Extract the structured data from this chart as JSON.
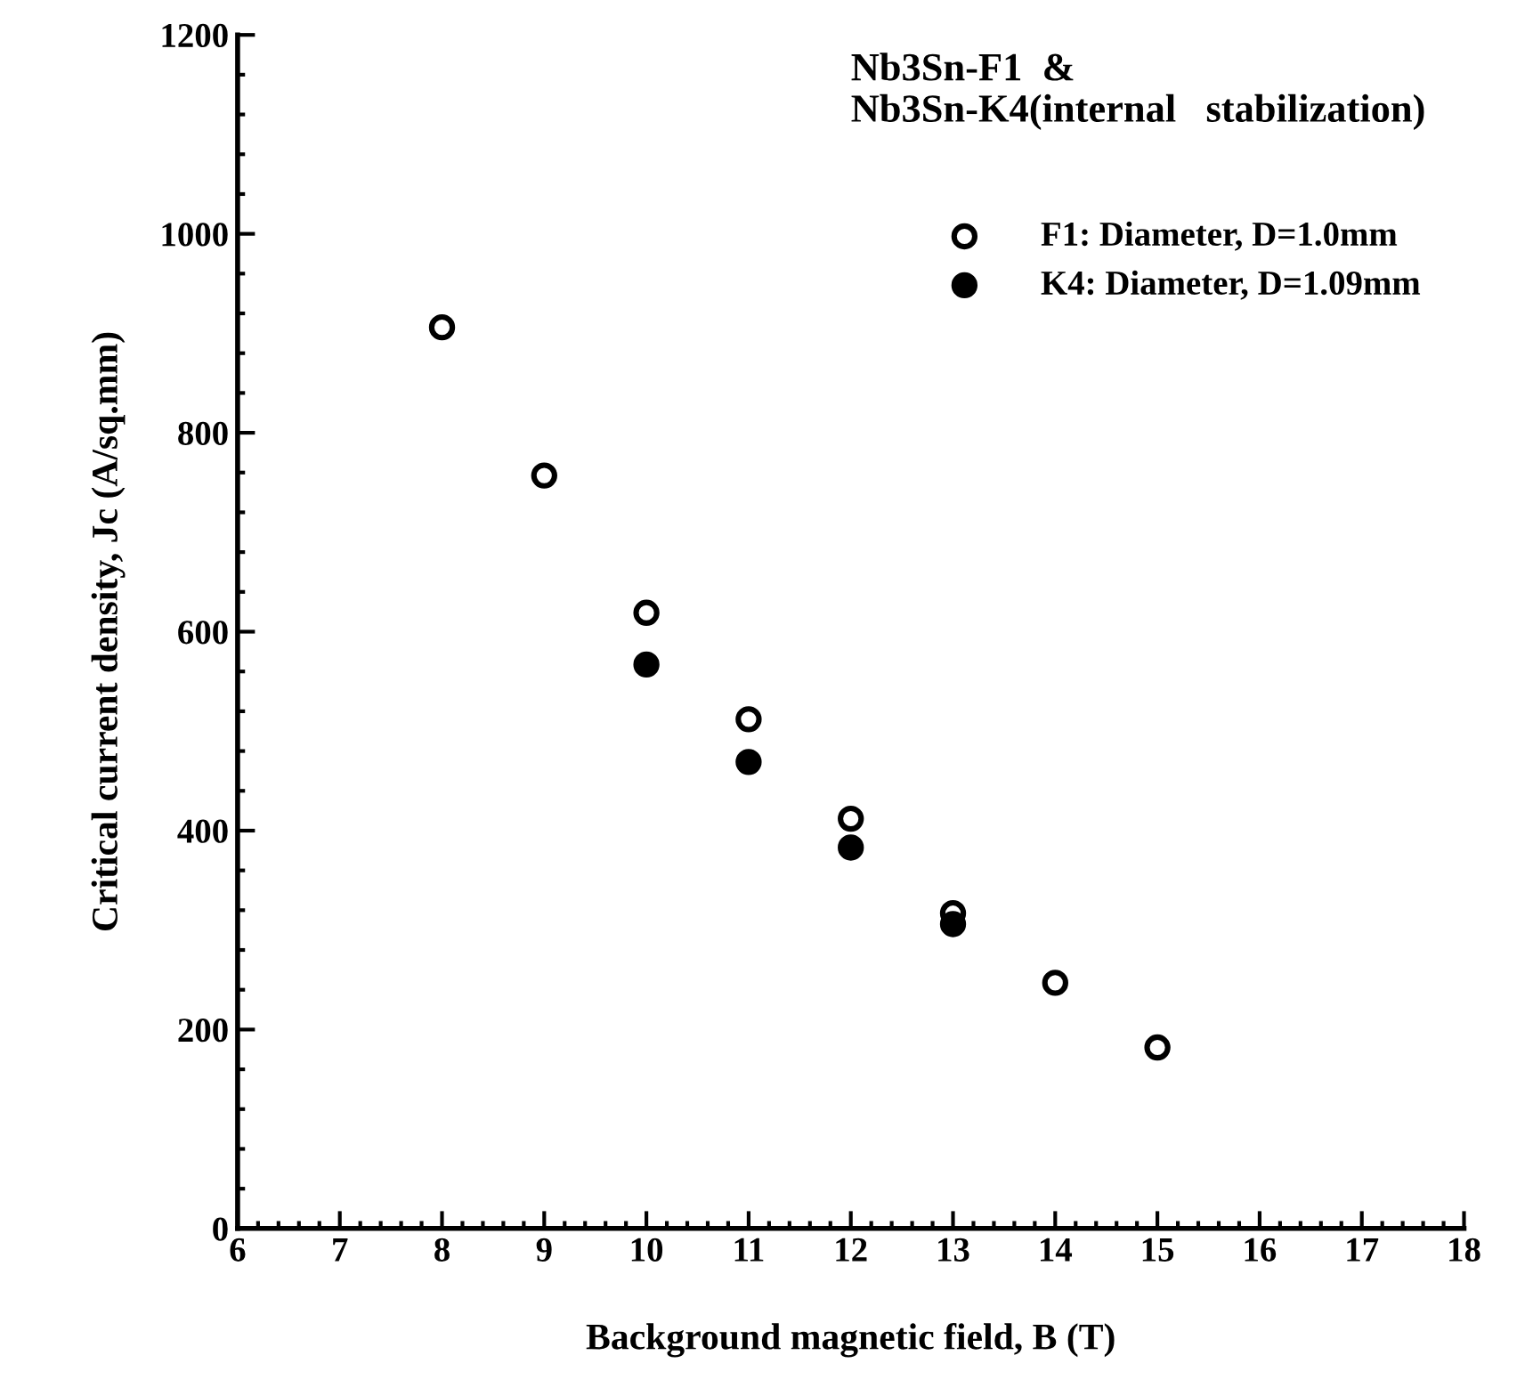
{
  "chart_data": {
    "type": "scatter",
    "title": "Nb3Sn-F1  &\nNb3Sn-K4(internal   stabilization)",
    "xlabel": "Background magnetic field, B (T)",
    "ylabel": "Critical current density, Jc (A/sq.mm)",
    "xlim": [
      6,
      18
    ],
    "xticks": [
      6,
      7,
      8,
      9,
      10,
      11,
      12,
      13,
      14,
      15,
      16,
      17,
      18
    ],
    "ylim": [
      0,
      1200
    ],
    "yticks": [
      0,
      200,
      400,
      600,
      800,
      1000,
      1200
    ],
    "grid": false,
    "legend": "top right",
    "marker": "circle",
    "series": [
      {
        "name": "F1: Diameter, D=1.0mm",
        "color": "#ffffff",
        "x": [
          8,
          9,
          10,
          11,
          12,
          13,
          14,
          15
        ],
        "values": [
          906,
          757,
          619,
          512,
          412,
          317,
          247,
          182
        ]
      },
      {
        "name": "K4: Diameter, D=1.09mm",
        "color": "#000000",
        "x": [
          10,
          11,
          12,
          13
        ],
        "values": [
          567,
          469,
          383,
          306
        ]
      }
    ]
  }
}
